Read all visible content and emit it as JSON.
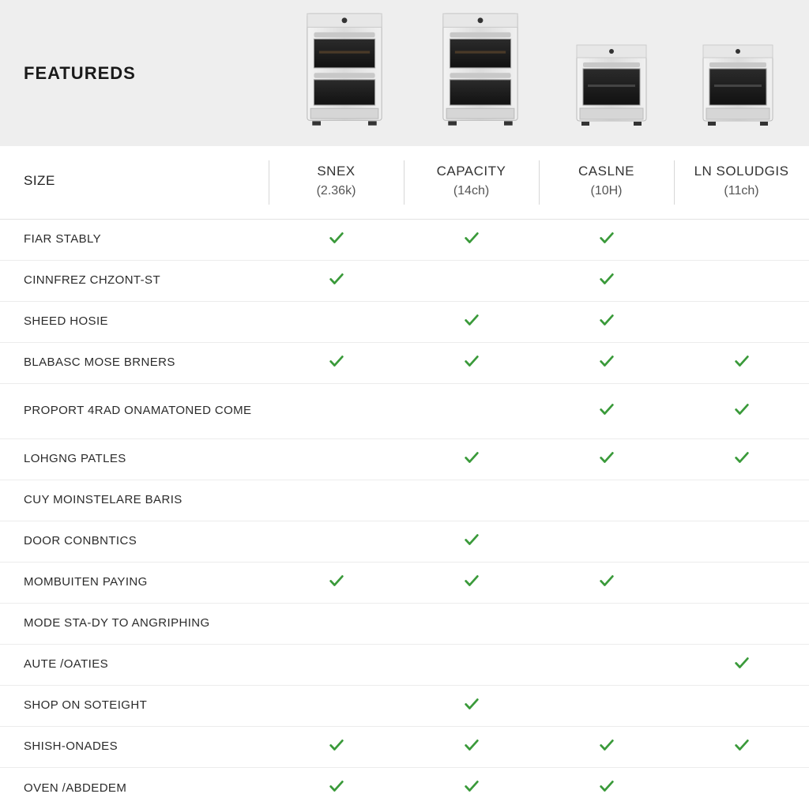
{
  "colors": {
    "header_bg": "#eeeeee",
    "page_bg": "#ffffff",
    "check": "#3a9a3a",
    "grid": "#ececec",
    "heading_text": "#1a1a1a",
    "body_text": "#2b2b2b"
  },
  "header": {
    "title": "FEATUREDS"
  },
  "table": {
    "size_label": "SIZE",
    "products": [
      {
        "name": "SNEX",
        "sub": "(2.36k)",
        "oven_type": "double-tall"
      },
      {
        "name": "CAPACITY",
        "sub": "(14ch)",
        "oven_type": "double-tall"
      },
      {
        "name": "CASLNE",
        "sub": "(10H)",
        "oven_type": "single-short"
      },
      {
        "name": "LN SOLUDGIS",
        "sub": "(11ch)",
        "oven_type": "single-short"
      }
    ],
    "features": [
      {
        "label": "FIAR STABLY",
        "checks": [
          true,
          true,
          true,
          false
        ]
      },
      {
        "label": "CINNFREZ CHZONT-ST",
        "checks": [
          true,
          false,
          true,
          false
        ]
      },
      {
        "label": "SHEED HOSIE",
        "checks": [
          false,
          true,
          true,
          false
        ]
      },
      {
        "label": "BLABASC MOSE BRNERS",
        "checks": [
          true,
          true,
          true,
          true
        ]
      },
      {
        "label": "PROPORT 4RAD ONAMATONED COME",
        "checks": [
          false,
          false,
          true,
          true
        ],
        "tall": true
      },
      {
        "label": "LOHGNG PATLES",
        "checks": [
          false,
          true,
          true,
          true
        ]
      },
      {
        "label": "CUY MOINSTELARE BARIS",
        "checks": [
          false,
          false,
          false,
          false
        ]
      },
      {
        "label": "DOOR CONBNTICS",
        "checks": [
          false,
          true,
          false,
          false
        ]
      },
      {
        "label": "MOMBUITEN PAYING",
        "checks": [
          true,
          true,
          true,
          false
        ]
      },
      {
        "label": "MODE STA-DY TO ANGRIPHING",
        "checks": [
          false,
          false,
          false,
          false
        ]
      },
      {
        "label": "AUTE /OATIES",
        "checks": [
          false,
          false,
          false,
          true
        ]
      },
      {
        "label": "SHOP ON SOTEIGHT",
        "checks": [
          false,
          true,
          false,
          false
        ]
      },
      {
        "label": "SHISH-ONADES",
        "checks": [
          true,
          true,
          true,
          true
        ]
      },
      {
        "label": "OVEN /ABDEDEM",
        "checks": [
          true,
          true,
          true,
          false
        ]
      }
    ]
  }
}
